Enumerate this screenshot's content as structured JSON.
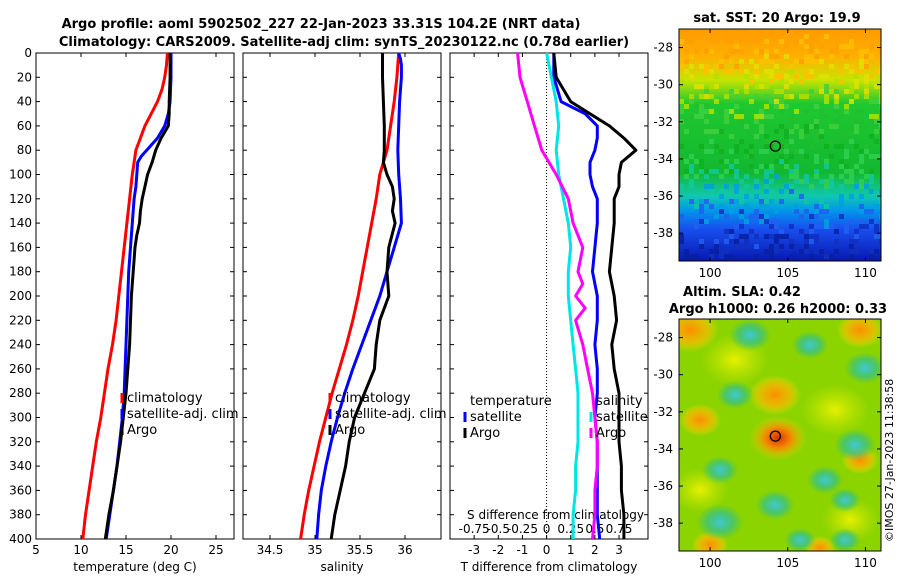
{
  "title_line1": "Argo profile: aoml 5902502_227 22-Jan-2023 33.31S 104.2E (NRT data)",
  "title_line2": "Climatology: CARS2009. Satellite-adj clim: synTS_20230122.nc (0.78d earlier)",
  "watermark": "©IMOS 27-Jan-2023 11:38:58",
  "colors": {
    "climatology": "#ff0000",
    "satellite": "#0000ff",
    "argo": "#000000",
    "salinity_diff": "#ff00ff",
    "salinity_sat": "#00e5e5"
  },
  "chart_data": [
    {
      "id": "temperature",
      "type": "line",
      "xlabel": "temperature (deg C)",
      "ylabel": "",
      "xlim": [
        5,
        27
      ],
      "ylim": [
        400,
        0
      ],
      "xticks": [
        5,
        10,
        15,
        20,
        25
      ],
      "yticks": [
        0,
        20,
        40,
        60,
        80,
        100,
        120,
        140,
        160,
        180,
        200,
        220,
        240,
        260,
        280,
        300,
        320,
        340,
        360,
        380,
        400
      ],
      "legend": [
        "climatology",
        "satellite-adj. clim",
        "Argo"
      ],
      "legend_loc": "lower-middle",
      "series": [
        {
          "name": "climatology",
          "color": "#ff0000",
          "depth": [
            0,
            10,
            20,
            30,
            40,
            50,
            60,
            70,
            80,
            90,
            100,
            120,
            140,
            160,
            180,
            200,
            220,
            240,
            260,
            280,
            300,
            320,
            340,
            360,
            380,
            400
          ],
          "values": [
            19.6,
            19.5,
            19.3,
            19.0,
            18.5,
            17.8,
            17.1,
            16.6,
            16.1,
            15.9,
            15.7,
            15.4,
            15.1,
            14.8,
            14.5,
            14.2,
            13.9,
            13.5,
            13.0,
            12.6,
            12.2,
            11.7,
            11.3,
            10.9,
            10.5,
            10.2
          ]
        },
        {
          "name": "satellite-adj. clim",
          "color": "#0000ff",
          "depth": [
            0,
            20,
            40,
            50,
            60,
            70,
            80,
            85,
            90,
            100,
            110,
            120,
            140,
            160,
            180,
            200,
            220,
            240,
            260,
            280,
            300,
            320,
            340,
            360,
            380,
            400
          ],
          "values": [
            20.0,
            20.0,
            19.9,
            19.7,
            19.3,
            18.5,
            17.3,
            16.7,
            16.3,
            16.2,
            16.1,
            15.9,
            15.7,
            15.5,
            15.3,
            15.2,
            15.1,
            15.0,
            14.9,
            14.8,
            14.6,
            14.3,
            14.0,
            13.6,
            13.2,
            12.8
          ]
        },
        {
          "name": "Argo",
          "color": "#000000",
          "depth": [
            0,
            20,
            40,
            50,
            60,
            65,
            70,
            80,
            90,
            100,
            110,
            120,
            130,
            140,
            150,
            160,
            180,
            200,
            220,
            240,
            260,
            280,
            300,
            320,
            340,
            360,
            380,
            400
          ],
          "values": [
            19.9,
            19.9,
            19.8,
            19.8,
            19.7,
            19.3,
            18.9,
            18.3,
            17.9,
            17.4,
            17.1,
            16.8,
            16.6,
            16.5,
            16.2,
            16.0,
            15.8,
            15.6,
            15.5,
            15.4,
            15.2,
            15.0,
            14.7,
            14.4,
            14.0,
            13.6,
            13.1,
            12.7
          ]
        }
      ]
    },
    {
      "id": "salinity",
      "type": "line",
      "xlabel": "salinity",
      "xlim": [
        34.2,
        36.4
      ],
      "ylim": [
        400,
        0
      ],
      "xticks": [
        34.5,
        35,
        35.5,
        36
      ],
      "xtick_labels": [
        "34.5",
        "35",
        "35.5",
        "36"
      ],
      "legend": [
        "climatology",
        "satellite-adj. clim",
        "Argo"
      ],
      "legend_loc": "lower-right",
      "series": [
        {
          "name": "climatology",
          "color": "#ff0000",
          "depth": [
            0,
            10,
            20,
            40,
            60,
            80,
            90,
            100,
            120,
            140,
            160,
            180,
            200,
            220,
            240,
            260,
            280,
            300,
            320,
            340,
            360,
            380,
            400
          ],
          "values": [
            35.93,
            35.92,
            35.91,
            35.88,
            35.84,
            35.8,
            35.76,
            35.72,
            35.68,
            35.63,
            35.58,
            35.53,
            35.48,
            35.42,
            35.35,
            35.27,
            35.19,
            35.12,
            35.05,
            34.99,
            34.93,
            34.88,
            34.84
          ]
        },
        {
          "name": "satellite-adj. clim",
          "color": "#0000ff",
          "depth": [
            0,
            5,
            10,
            20,
            40,
            60,
            80,
            100,
            120,
            140,
            150,
            160,
            180,
            200,
            220,
            240,
            260,
            280,
            300,
            320,
            340,
            360,
            380,
            400
          ],
          "values": [
            35.93,
            35.95,
            35.96,
            35.96,
            35.94,
            35.93,
            35.92,
            35.93,
            35.95,
            35.96,
            35.92,
            35.88,
            35.8,
            35.72,
            35.62,
            35.52,
            35.42,
            35.33,
            35.25,
            35.18,
            35.12,
            35.07,
            35.04,
            35.02
          ]
        },
        {
          "name": "Argo",
          "color": "#000000",
          "depth": [
            0,
            20,
            40,
            60,
            80,
            90,
            100,
            110,
            120,
            130,
            140,
            160,
            180,
            200,
            220,
            240,
            260,
            280,
            300,
            320,
            340,
            360,
            380,
            400
          ],
          "values": [
            35.75,
            35.75,
            35.76,
            35.77,
            35.77,
            35.76,
            35.8,
            35.86,
            35.88,
            35.86,
            35.89,
            35.82,
            35.8,
            35.82,
            35.72,
            35.68,
            35.66,
            35.55,
            35.44,
            35.38,
            35.34,
            35.28,
            35.22,
            35.18
          ]
        }
      ]
    },
    {
      "id": "difference",
      "type": "line",
      "xlabel": "T difference from climatology",
      "top_label": "S difference from climatology",
      "xlim": [
        -4,
        4.2
      ],
      "ylim": [
        400,
        0
      ],
      "xticks": [
        -3,
        -2,
        -1,
        0,
        1,
        2,
        3
      ],
      "top_tick_labels": [
        "-0.75",
        "-0.5",
        "-0.25",
        "0",
        "0.25",
        "0.5",
        "0.75"
      ],
      "legend_left_title": "temperature",
      "legend_left": [
        "satellite",
        "Argo"
      ],
      "legend_right_title": "salinity",
      "legend_right": [
        "satellite",
        "Argo"
      ],
      "series": [
        {
          "name": "T satellite",
          "color": "#0000ff",
          "depth": [
            0,
            20,
            40,
            50,
            60,
            70,
            80,
            90,
            100,
            110,
            120,
            140,
            160,
            180,
            200,
            220,
            240,
            260,
            280,
            300,
            320,
            340,
            360,
            380,
            400
          ],
          "values": [
            0.3,
            0.3,
            0.6,
            1.6,
            2.1,
            2.1,
            2.0,
            1.8,
            1.8,
            1.9,
            2.1,
            2.1,
            2.0,
            1.9,
            2.1,
            2.1,
            2.0,
            2.1,
            2.1,
            2.0,
            2.1,
            2.1,
            2.1,
            2.1,
            2.2
          ]
        },
        {
          "name": "T Argo",
          "color": "#000000",
          "depth": [
            0,
            20,
            40,
            50,
            60,
            70,
            80,
            90,
            100,
            110,
            120,
            140,
            160,
            180,
            200,
            220,
            240,
            260,
            280,
            300,
            320,
            340,
            360,
            380,
            400
          ],
          "values": [
            0.3,
            0.4,
            1.0,
            1.8,
            2.6,
            3.2,
            3.7,
            3.1,
            3.0,
            3.0,
            2.8,
            2.8,
            2.7,
            2.6,
            2.8,
            2.9,
            2.7,
            2.8,
            3.0,
            3.0,
            3.0,
            3.1,
            3.1,
            3.2,
            3.2
          ]
        },
        {
          "name": "S satellite",
          "color": "#00e5e5",
          "depth": [
            0,
            20,
            40,
            60,
            80,
            100,
            120,
            140,
            160,
            180,
            200,
            220,
            240,
            260,
            280,
            300,
            320,
            340,
            360,
            380,
            400
          ],
          "values": [
            0.0,
            0.2,
            0.4,
            0.5,
            0.4,
            0.5,
            0.7,
            0.9,
            1.0,
            0.9,
            0.9,
            1.0,
            1.1,
            1.2,
            1.3,
            1.3,
            1.3,
            1.2,
            1.2,
            1.1,
            1.1
          ]
        },
        {
          "name": "S Argo",
          "color": "#ff00ff",
          "depth": [
            0,
            20,
            40,
            60,
            80,
            100,
            120,
            140,
            160,
            180,
            190,
            200,
            210,
            220,
            240,
            260,
            280,
            300,
            320,
            340,
            360,
            380,
            400
          ],
          "values": [
            -1.2,
            -1.1,
            -0.8,
            -0.5,
            -0.2,
            0.4,
            0.9,
            1.1,
            1.5,
            1.3,
            1.5,
            1.2,
            1.6,
            1.2,
            1.5,
            1.7,
            1.9,
            2.0,
            2.1,
            2.1,
            2.0,
            2.0,
            1.9
          ]
        }
      ]
    },
    {
      "id": "sst_map",
      "type": "heatmap",
      "title": "sat. SST: 20 Argo: 19.9",
      "xlim": [
        98,
        111
      ],
      "ylim": [
        -39.5,
        -27
      ],
      "xticks": [
        100,
        105,
        110
      ],
      "yticks": [
        -28,
        -30,
        -32,
        -34,
        -36,
        -38
      ],
      "marker": {
        "lon": 104.2,
        "lat": -33.31
      }
    },
    {
      "id": "sla_map",
      "type": "heatmap",
      "title_line1": "Altim. SLA: 0.42",
      "title_line2": "Argo h1000: 0.26 h2000: 0.33",
      "xlim": [
        98,
        111
      ],
      "ylim": [
        -39.5,
        -27
      ],
      "xticks": [
        100,
        105,
        110
      ],
      "yticks": [
        -28,
        -30,
        -32,
        -34,
        -36,
        -38
      ],
      "marker": {
        "lon": 104.2,
        "lat": -33.31
      }
    }
  ]
}
